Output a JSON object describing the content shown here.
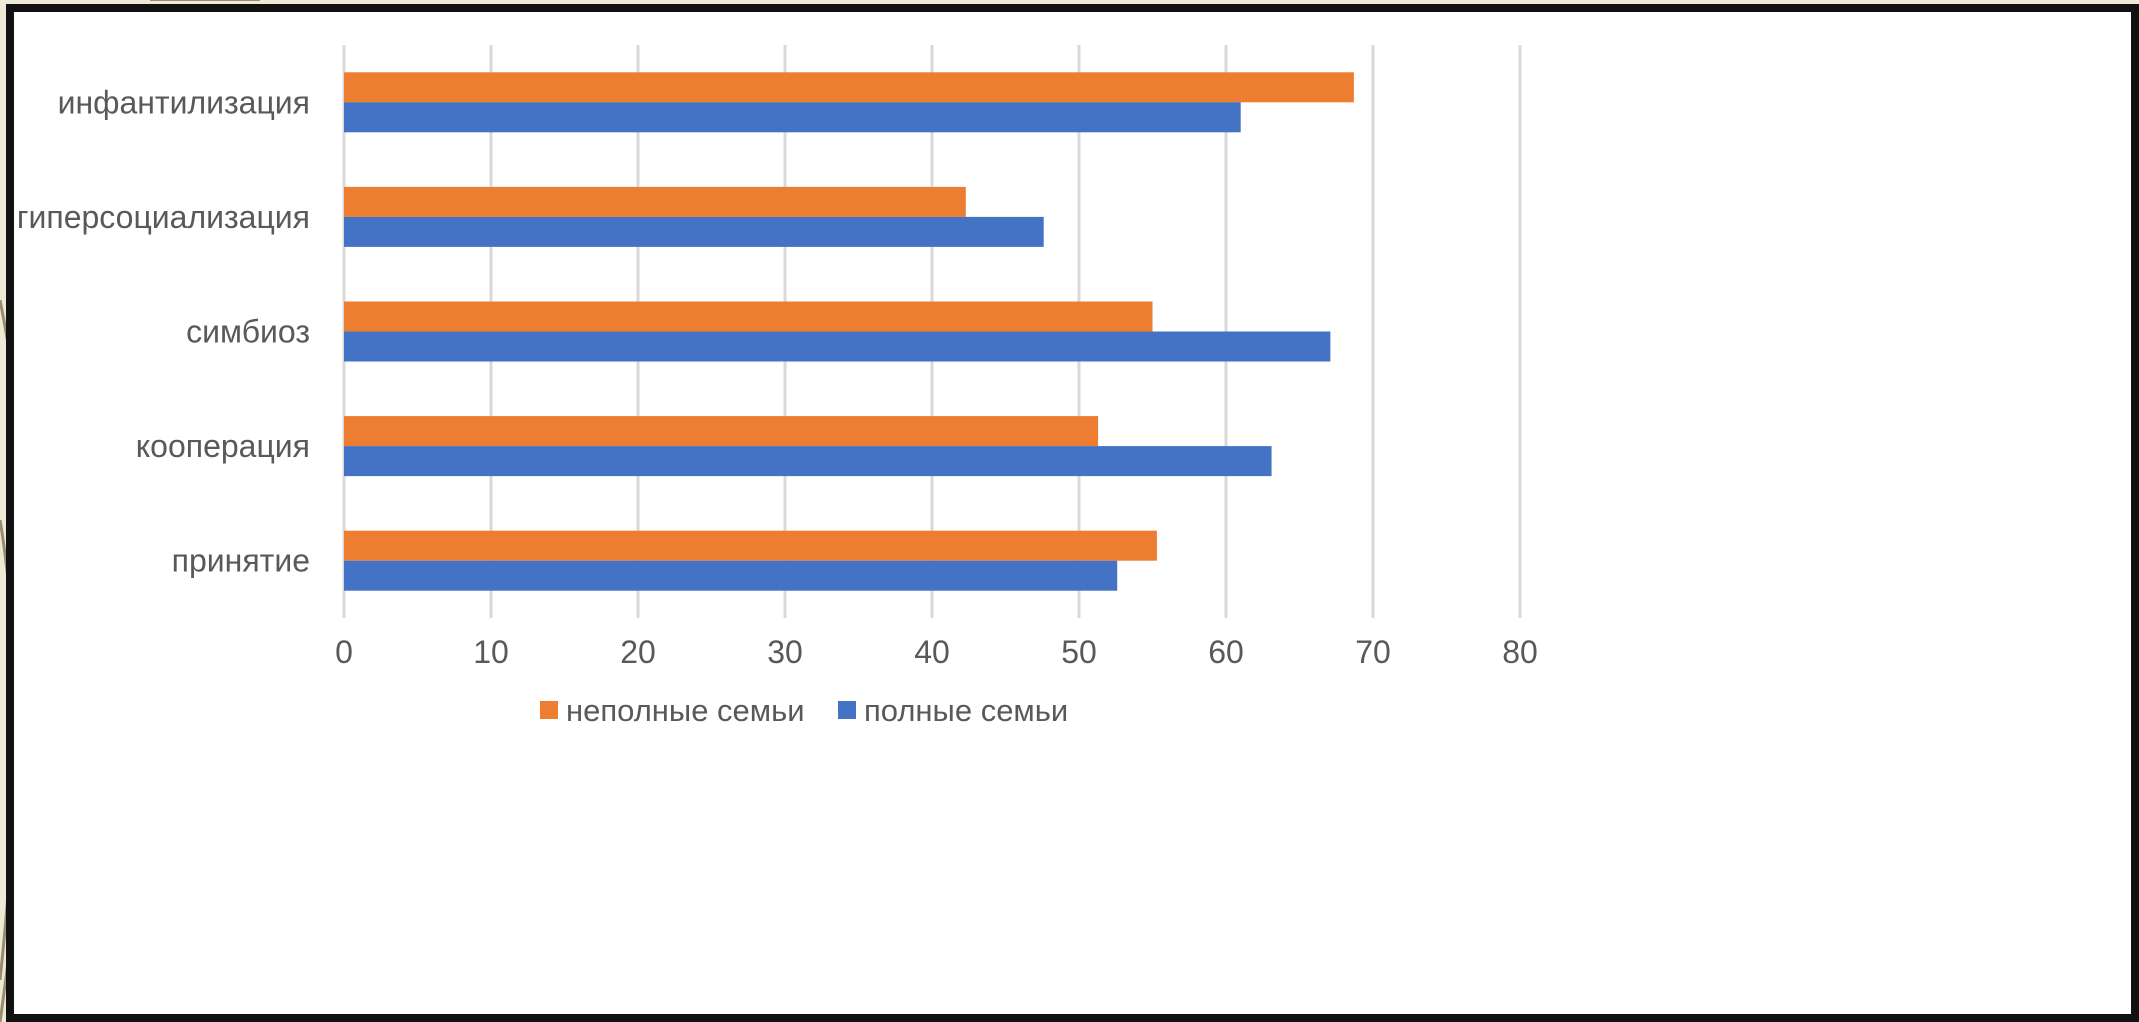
{
  "chart_data": {
    "type": "bar",
    "orientation": "horizontal",
    "categories": [
      "инфантилизация",
      "гиперсоциализация",
      "симбиоз",
      "кооперация",
      "принятие"
    ],
    "series": [
      {
        "name": "неполные семьи",
        "color": "#ed7d31",
        "values": [
          68.7,
          42.3,
          55.0,
          51.3,
          55.3
        ]
      },
      {
        "name": "полные семьи",
        "color": "#4472c4",
        "values": [
          61.0,
          47.6,
          67.1,
          63.1,
          52.6
        ]
      }
    ],
    "xlim": [
      0,
      80
    ],
    "xticks": [
      "0",
      "10",
      "20",
      "30",
      "40",
      "50",
      "60",
      "70",
      "80"
    ],
    "grid": "vertical",
    "legend_position": "bottom"
  }
}
